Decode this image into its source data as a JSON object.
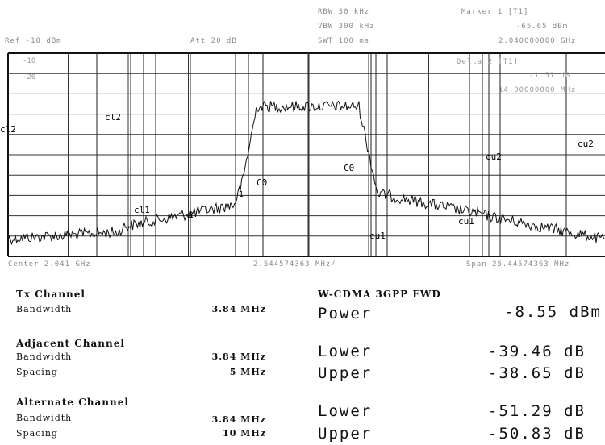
{
  "analyzer_header": {
    "ref_level": "Ref -10 dBm",
    "attenuation": "Att 20 dB",
    "rbw": "RBW 30 kHz",
    "vbw": "VBW 300 kHz",
    "sweep_time": "SWT 100 ms",
    "marker_title": "Marker 1 [T1]",
    "marker_level": "-65.65 dBm",
    "marker_freq": "2.040000000 GHz",
    "delta_title": "Delta 2 [T1]",
    "delta_level": "-1.51 dB",
    "delta_freq": "14.00000000 MHz"
  },
  "grid_scale": {
    "top_tick": "-10",
    "second_tick": "-20"
  },
  "trace": {
    "color": "#111111"
  },
  "channel_labels": {
    "cl2_left": "cl2",
    "cl2_inner": "cl2",
    "cl1": "cl1",
    "c0_left": "C0",
    "c0_right": "C0",
    "cu1_lower": "cu1",
    "cu1_upper": "cu1",
    "cu2_inner": "cu2",
    "cu2_right": "cu2",
    "marker_1": "1",
    "marker_2": "2",
    "delta_mark": "Δ"
  },
  "footer": {
    "center": "Center 2.041 GHz",
    "div": "2.544574363 MHz/",
    "span": "Span 25.44574363 MHz"
  },
  "results": {
    "tx_channel_heading": "Tx Channel",
    "tx_bandwidth_label": "Bandwidth",
    "tx_bandwidth_value": "3.84 MHz",
    "adj_heading": "Adjacent Channel",
    "adj_bandwidth_label": "Bandwidth",
    "adj_bandwidth_value": "3.84 MHz",
    "adj_spacing_label": "Spacing",
    "adj_spacing_value": "5 MHz",
    "alt_heading": "Alternate Channel",
    "alt_bandwidth_label": "Bandwidth",
    "alt_bandwidth_value": "3.84 MHz",
    "alt_spacing_label": "Spacing",
    "alt_spacing_value": "10 MHz",
    "standard": "W-CDMA 3GPP FWD",
    "power_label": "Power",
    "power_value": "-8.55 dBm",
    "adj_lower_label": "Lower",
    "adj_lower_value": "-39.46 dB",
    "adj_upper_label": "Upper",
    "adj_upper_value": "-38.65 dB",
    "alt_lower_label": "Lower",
    "alt_lower_value": "-51.29 dB",
    "alt_upper_label": "Upper",
    "alt_upper_value": "-50.83 dB"
  }
}
